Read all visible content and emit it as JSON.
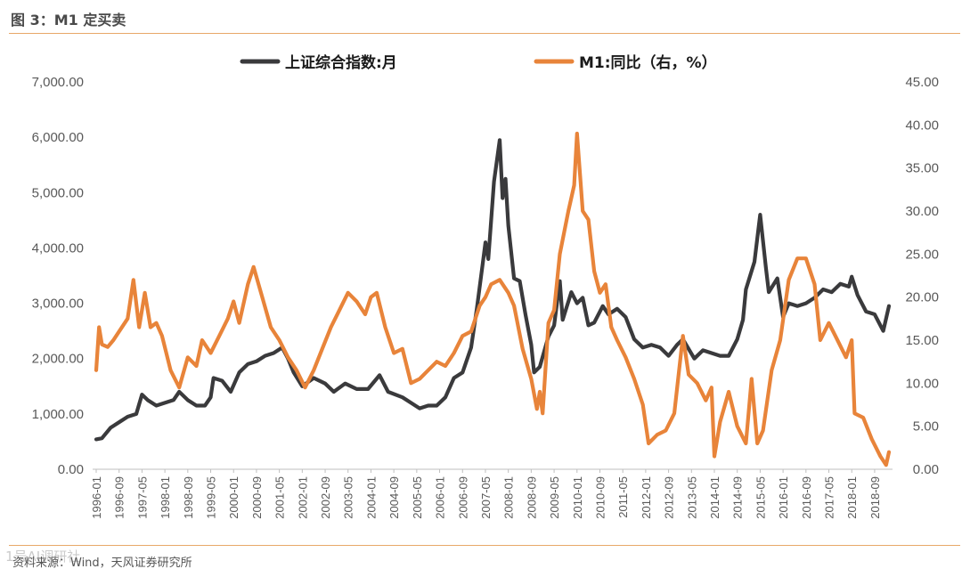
{
  "figure": {
    "title": "图 3：M1 定买卖",
    "source": "资料来源：Wind，天风证券研究所",
    "watermark": "1号AI调研社"
  },
  "colors": {
    "index": "#3a3a3c",
    "m1": "#e8843a",
    "rule": "#e8a868"
  },
  "chart_data": {
    "type": "line",
    "title": "图 3：M1 定买卖",
    "legend": [
      "上证综合指数:月",
      "M1:同比（右，%）"
    ],
    "y_left": {
      "min": 0,
      "max": 7000,
      "ticks": [
        0,
        1000,
        2000,
        3000,
        4000,
        5000,
        6000,
        7000
      ],
      "tick_labels": [
        "0.00",
        "1,000.00",
        "2,000.00",
        "3,000.00",
        "4,000.00",
        "5,000.00",
        "6,000.00",
        "7,000.00"
      ]
    },
    "y_right": {
      "min": 0,
      "max": 45,
      "ticks": [
        0,
        5,
        10,
        15,
        20,
        25,
        30,
        35,
        40,
        45
      ],
      "tick_labels": [
        "0.00",
        "5.00",
        "10.00",
        "15.00",
        "20.00",
        "25.00",
        "30.00",
        "35.00",
        "40.00",
        "45.00"
      ]
    },
    "x_ticks": [
      "1996-01",
      "1996-09",
      "1997-05",
      "1998-01",
      "1998-09",
      "1999-05",
      "2000-01",
      "2000-09",
      "2001-05",
      "2002-01",
      "2002-09",
      "2003-05",
      "2004-01",
      "2004-09",
      "2005-05",
      "2006-01",
      "2006-09",
      "2007-05",
      "2008-01",
      "2008-09",
      "2009-05",
      "2010-01",
      "2010-09",
      "2011-05",
      "2012-01",
      "2012-09",
      "2013-05",
      "2014-01",
      "2014-09",
      "2015-05",
      "2016-01",
      "2016-09",
      "2017-05",
      "2018-01",
      "2018-09"
    ],
    "series": [
      {
        "name": "上证综合指数:月",
        "axis": "left",
        "points": [
          [
            "1996-01",
            540
          ],
          [
            "1996-03",
            560
          ],
          [
            "1996-06",
            750
          ],
          [
            "1996-09",
            850
          ],
          [
            "1996-12",
            950
          ],
          [
            "1997-03",
            1000
          ],
          [
            "1997-05",
            1350
          ],
          [
            "1997-07",
            1250
          ],
          [
            "1997-10",
            1150
          ],
          [
            "1998-01",
            1200
          ],
          [
            "1998-04",
            1250
          ],
          [
            "1998-06",
            1400
          ],
          [
            "1998-09",
            1250
          ],
          [
            "1998-12",
            1150
          ],
          [
            "1999-03",
            1150
          ],
          [
            "1999-05",
            1300
          ],
          [
            "1999-06",
            1650
          ],
          [
            "1999-09",
            1600
          ],
          [
            "1999-12",
            1400
          ],
          [
            "2000-03",
            1750
          ],
          [
            "2000-06",
            1900
          ],
          [
            "2000-09",
            1950
          ],
          [
            "2000-12",
            2050
          ],
          [
            "2001-03",
            2100
          ],
          [
            "2001-06",
            2200
          ],
          [
            "2001-08",
            2000
          ],
          [
            "2001-10",
            1750
          ],
          [
            "2002-01",
            1500
          ],
          [
            "2002-05",
            1650
          ],
          [
            "2002-09",
            1550
          ],
          [
            "2002-12",
            1400
          ],
          [
            "2003-04",
            1550
          ],
          [
            "2003-08",
            1450
          ],
          [
            "2003-12",
            1450
          ],
          [
            "2004-04",
            1700
          ],
          [
            "2004-07",
            1400
          ],
          [
            "2004-12",
            1300
          ],
          [
            "2005-03",
            1200
          ],
          [
            "2005-06",
            1100
          ],
          [
            "2005-09",
            1150
          ],
          [
            "2005-12",
            1150
          ],
          [
            "2006-03",
            1300
          ],
          [
            "2006-06",
            1650
          ],
          [
            "2006-09",
            1750
          ],
          [
            "2006-12",
            2200
          ],
          [
            "2007-02",
            2900
          ],
          [
            "2007-04",
            3700
          ],
          [
            "2007-05",
            4100
          ],
          [
            "2007-06",
            3800
          ],
          [
            "2007-08",
            5200
          ],
          [
            "2007-10",
            5950
          ],
          [
            "2007-11",
            4900
          ],
          [
            "2007-12",
            5250
          ],
          [
            "2008-01",
            4400
          ],
          [
            "2008-03",
            3450
          ],
          [
            "2008-05",
            3400
          ],
          [
            "2008-07",
            2800
          ],
          [
            "2008-09",
            2250
          ],
          [
            "2008-10",
            1750
          ],
          [
            "2008-12",
            1850
          ],
          [
            "2009-03",
            2400
          ],
          [
            "2009-05",
            2600
          ],
          [
            "2009-07",
            3400
          ],
          [
            "2009-08",
            2700
          ],
          [
            "2009-11",
            3200
          ],
          [
            "2010-01",
            3000
          ],
          [
            "2010-03",
            3100
          ],
          [
            "2010-05",
            2600
          ],
          [
            "2010-07",
            2650
          ],
          [
            "2010-10",
            2950
          ],
          [
            "2010-12",
            2800
          ],
          [
            "2011-03",
            2900
          ],
          [
            "2011-06",
            2750
          ],
          [
            "2011-09",
            2350
          ],
          [
            "2011-12",
            2200
          ],
          [
            "2012-03",
            2250
          ],
          [
            "2012-06",
            2200
          ],
          [
            "2012-09",
            2050
          ],
          [
            "2012-12",
            2250
          ],
          [
            "2013-02",
            2350
          ],
          [
            "2013-06",
            2000
          ],
          [
            "2013-09",
            2150
          ],
          [
            "2013-12",
            2100
          ],
          [
            "2014-03",
            2050
          ],
          [
            "2014-06",
            2050
          ],
          [
            "2014-09",
            2350
          ],
          [
            "2014-11",
            2700
          ],
          [
            "2014-12",
            3250
          ],
          [
            "2015-03",
            3750
          ],
          [
            "2015-05",
            4600
          ],
          [
            "2015-07",
            3650
          ],
          [
            "2015-08",
            3200
          ],
          [
            "2015-11",
            3450
          ],
          [
            "2016-01",
            2750
          ],
          [
            "2016-03",
            3000
          ],
          [
            "2016-06",
            2950
          ],
          [
            "2016-09",
            3000
          ],
          [
            "2016-12",
            3100
          ],
          [
            "2017-03",
            3250
          ],
          [
            "2017-06",
            3200
          ],
          [
            "2017-09",
            3350
          ],
          [
            "2017-12",
            3300
          ],
          [
            "2018-01",
            3480
          ],
          [
            "2018-03",
            3150
          ],
          [
            "2018-06",
            2850
          ],
          [
            "2018-09",
            2800
          ],
          [
            "2018-12",
            2500
          ],
          [
            "2019-02",
            2950
          ]
        ]
      },
      {
        "name": "M1:同比（右，%）",
        "axis": "right",
        "points": [
          [
            "1996-01",
            11.5
          ],
          [
            "1996-02",
            16.5
          ],
          [
            "1996-03",
            14.5
          ],
          [
            "1996-05",
            14.2
          ],
          [
            "1996-07",
            15.0
          ],
          [
            "1996-09",
            16.0
          ],
          [
            "1996-12",
            17.5
          ],
          [
            "1997-02",
            22.0
          ],
          [
            "1997-04",
            16.5
          ],
          [
            "1997-06",
            20.5
          ],
          [
            "1997-08",
            16.5
          ],
          [
            "1997-10",
            17.0
          ],
          [
            "1997-12",
            15.5
          ],
          [
            "1998-03",
            11.5
          ],
          [
            "1998-06",
            9.5
          ],
          [
            "1998-09",
            13.0
          ],
          [
            "1998-12",
            12.0
          ],
          [
            "1999-02",
            15.0
          ],
          [
            "1999-05",
            13.5
          ],
          [
            "1999-08",
            15.5
          ],
          [
            "1999-11",
            17.5
          ],
          [
            "2000-01",
            19.5
          ],
          [
            "2000-03",
            17.0
          ],
          [
            "2000-06",
            21.5
          ],
          [
            "2000-08",
            23.5
          ],
          [
            "2000-11",
            20.0
          ],
          [
            "2001-02",
            16.5
          ],
          [
            "2001-05",
            15.0
          ],
          [
            "2001-08",
            13.0
          ],
          [
            "2001-11",
            11.5
          ],
          [
            "2002-02",
            9.5
          ],
          [
            "2002-05",
            11.5
          ],
          [
            "2002-08",
            14.0
          ],
          [
            "2002-11",
            16.5
          ],
          [
            "2003-02",
            18.5
          ],
          [
            "2003-05",
            20.5
          ],
          [
            "2003-08",
            19.5
          ],
          [
            "2003-11",
            18.0
          ],
          [
            "2004-01",
            20.0
          ],
          [
            "2004-03",
            20.5
          ],
          [
            "2004-06",
            16.5
          ],
          [
            "2004-09",
            13.5
          ],
          [
            "2004-12",
            14.0
          ],
          [
            "2005-03",
            10.0
          ],
          [
            "2005-06",
            10.5
          ],
          [
            "2005-09",
            11.5
          ],
          [
            "2005-12",
            12.5
          ],
          [
            "2006-03",
            12.0
          ],
          [
            "2006-06",
            13.5
          ],
          [
            "2006-09",
            15.5
          ],
          [
            "2006-12",
            16.0
          ],
          [
            "2007-03",
            19.0
          ],
          [
            "2007-05",
            20.0
          ],
          [
            "2007-07",
            21.5
          ],
          [
            "2007-10",
            22.0
          ],
          [
            "2008-01",
            20.5
          ],
          [
            "2008-03",
            19.0
          ],
          [
            "2008-06",
            14.0
          ],
          [
            "2008-09",
            10.5
          ],
          [
            "2008-11",
            7.0
          ],
          [
            "2008-12",
            9.0
          ],
          [
            "2009-01",
            6.5
          ],
          [
            "2009-03",
            17.0
          ],
          [
            "2009-05",
            18.5
          ],
          [
            "2009-07",
            25.0
          ],
          [
            "2009-10",
            30.0
          ],
          [
            "2009-12",
            33.0
          ],
          [
            "2010-01",
            39.0
          ],
          [
            "2010-03",
            30.0
          ],
          [
            "2010-05",
            29.0
          ],
          [
            "2010-07",
            23.0
          ],
          [
            "2010-09",
            20.5
          ],
          [
            "2010-11",
            21.5
          ],
          [
            "2011-01",
            16.5
          ],
          [
            "2011-03",
            15.0
          ],
          [
            "2011-06",
            13.0
          ],
          [
            "2011-09",
            10.5
          ],
          [
            "2011-12",
            7.5
          ],
          [
            "2012-02",
            3.0
          ],
          [
            "2012-05",
            4.0
          ],
          [
            "2012-08",
            4.5
          ],
          [
            "2012-11",
            6.5
          ],
          [
            "2013-02",
            15.5
          ],
          [
            "2013-04",
            11.0
          ],
          [
            "2013-07",
            10.0
          ],
          [
            "2013-10",
            8.0
          ],
          [
            "2013-12",
            9.5
          ],
          [
            "2014-01",
            1.5
          ],
          [
            "2014-03",
            5.5
          ],
          [
            "2014-06",
            9.0
          ],
          [
            "2014-09",
            5.0
          ],
          [
            "2014-12",
            3.0
          ],
          [
            "2015-02",
            10.5
          ],
          [
            "2015-04",
            3.0
          ],
          [
            "2015-06",
            4.5
          ],
          [
            "2015-09",
            11.5
          ],
          [
            "2015-12",
            15.0
          ],
          [
            "2016-03",
            22.0
          ],
          [
            "2016-06",
            24.5
          ],
          [
            "2016-09",
            24.5
          ],
          [
            "2016-12",
            21.5
          ],
          [
            "2017-02",
            15.0
          ],
          [
            "2017-05",
            17.0
          ],
          [
            "2017-08",
            15.0
          ],
          [
            "2017-11",
            13.0
          ],
          [
            "2018-01",
            15.0
          ],
          [
            "2018-02",
            6.5
          ],
          [
            "2018-05",
            6.0
          ],
          [
            "2018-08",
            3.5
          ],
          [
            "2018-11",
            1.5
          ],
          [
            "2019-01",
            0.5
          ],
          [
            "2019-02",
            2.0
          ]
        ]
      }
    ]
  }
}
